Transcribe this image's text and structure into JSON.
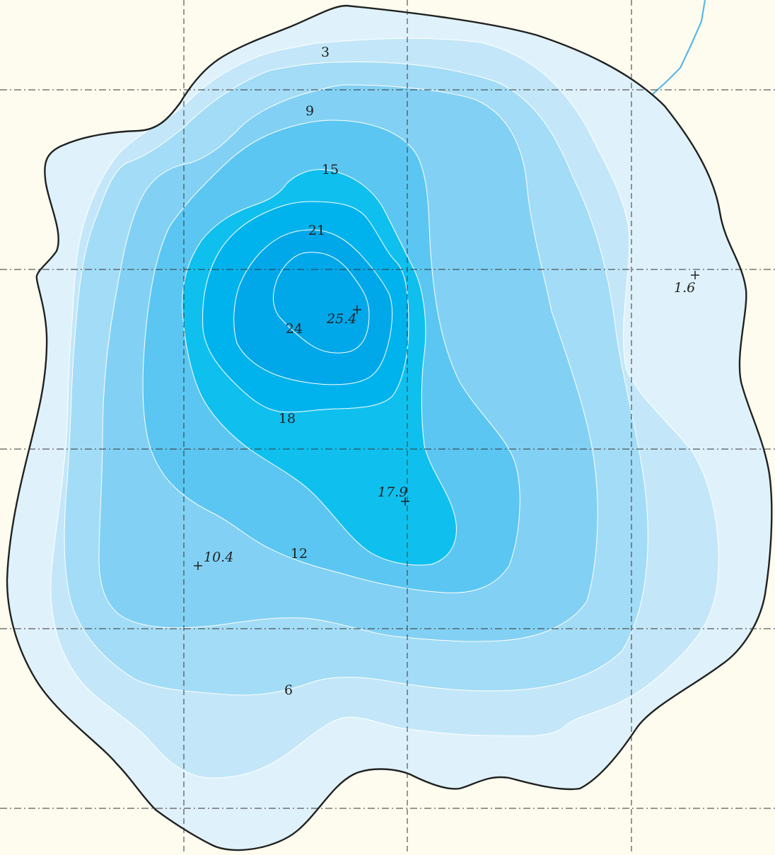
{
  "map": {
    "colors": {
      "land": "#fefcef",
      "shoreline": "#222222",
      "river": "#5bb8e8",
      "contour_line": "#ffffff",
      "bands": [
        "#dff2fc",
        "#c3e7f9",
        "#a3dcf6",
        "#82d1f4",
        "#5bc6f2",
        "#0fc0ef",
        "#00b3ec",
        "#00a8ea"
      ]
    },
    "contour_labels": [
      "3",
      "6",
      "9",
      "12",
      "15",
      "18",
      "21",
      "24"
    ],
    "soundings": [
      {
        "label": "25.4"
      },
      {
        "label": "17.9"
      },
      {
        "label": "10.4"
      },
      {
        "label": "1.6"
      }
    ]
  }
}
